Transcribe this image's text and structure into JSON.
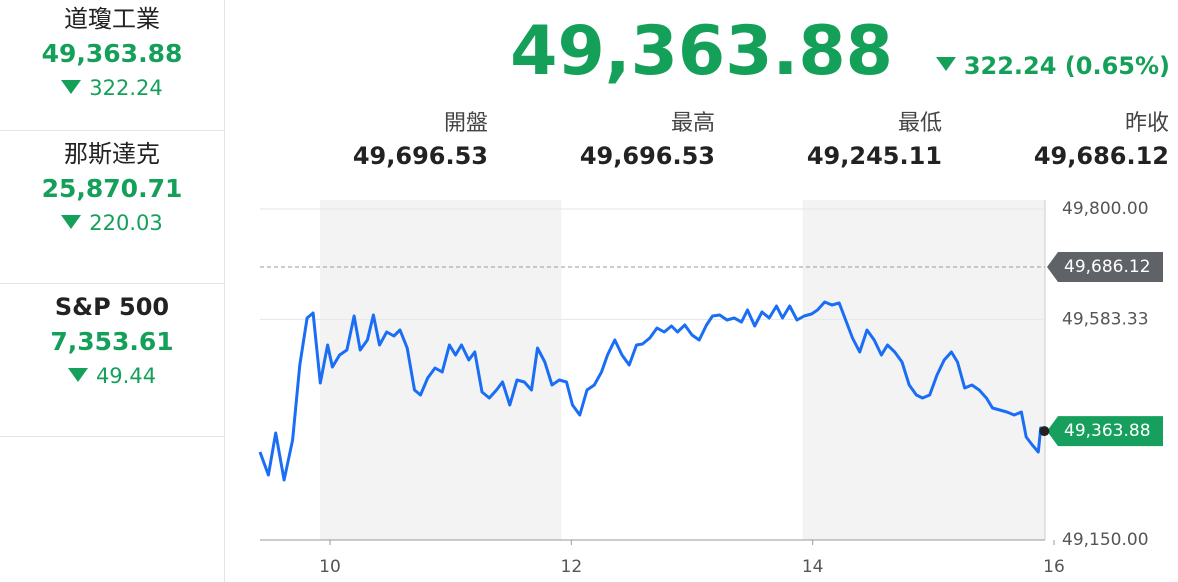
{
  "sidebar": [
    {
      "name": "道瓊工業",
      "value": "49,363.88",
      "change": "322.24"
    },
    {
      "name": "那斯達克",
      "value": "25,870.71",
      "change": "220.03"
    },
    {
      "name": "S&P 500",
      "value": "7,353.61",
      "change": "49.44"
    }
  ],
  "header": {
    "price": "49,363.88",
    "change": "322.24 (0.65%)",
    "stats": [
      {
        "label": "開盤",
        "value": "49,696.53"
      },
      {
        "label": "最高",
        "value": "49,696.53"
      },
      {
        "label": "最低",
        "value": "49,245.11"
      },
      {
        "label": "昨收",
        "value": "49,686.12"
      }
    ]
  },
  "chart_data": {
    "type": "line",
    "color": "#1a6ef5",
    "xlim": [
      9.42,
      16
    ],
    "xticks": [
      10,
      12,
      14,
      16
    ],
    "ylim": [
      49150,
      49800
    ],
    "yticks": [
      {
        "value": 49800,
        "label": "49,800.00"
      },
      {
        "value": 49583.33,
        "label": "49,583.33"
      },
      {
        "value": 49150,
        "label": "49,150.00"
      }
    ],
    "reference_line": {
      "value": 49686.12,
      "label": "49,686.12"
    },
    "last_label": "49,363.88",
    "x": [
      9.42,
      9.49,
      9.55,
      9.62,
      9.69,
      9.75,
      9.81,
      9.86,
      9.92,
      9.98,
      10.02,
      10.08,
      10.14,
      10.2,
      10.25,
      10.31,
      10.36,
      10.41,
      10.47,
      10.53,
      10.58,
      10.64,
      10.7,
      10.75,
      10.81,
      10.87,
      10.93,
      10.99,
      11.04,
      11.09,
      11.15,
      11.2,
      11.26,
      11.32,
      11.38,
      11.43,
      11.49,
      11.55,
      11.61,
      11.67,
      11.72,
      11.78,
      11.84,
      11.9,
      11.96,
      12.01,
      12.07,
      12.13,
      12.19,
      12.25,
      12.3,
      12.36,
      12.42,
      12.48,
      12.54,
      12.59,
      12.65,
      12.71,
      12.77,
      12.83,
      12.88,
      12.94,
      13.0,
      13.06,
      13.12,
      13.17,
      13.23,
      13.29,
      13.35,
      13.41,
      13.46,
      13.52,
      13.58,
      13.64,
      13.7,
      13.75,
      13.81,
      13.87,
      13.93,
      13.99,
      14.04,
      14.1,
      14.16,
      14.22,
      14.28,
      14.33,
      14.39,
      14.45,
      14.51,
      14.57,
      14.62,
      14.68,
      14.74,
      14.8,
      14.86,
      14.91,
      14.97,
      15.03,
      15.09,
      15.15,
      15.2,
      15.26,
      15.32,
      15.38,
      15.44,
      15.49,
      15.55,
      15.61,
      15.67,
      15.73,
      15.77,
      15.82,
      15.87,
      15.89,
      15.92
    ],
    "values": [
      49322.8,
      49277.7,
      49360.1,
      49267.8,
      49346.4,
      49493.7,
      49586.0,
      49595.8,
      49458.3,
      49532.9,
      49489.7,
      49513.3,
      49523.1,
      49589.9,
      49523.1,
      49542.8,
      49591.8,
      49532.9,
      49558.5,
      49550.6,
      49562.4,
      49527.0,
      49444.6,
      49434.8,
      49468.1,
      49487.8,
      49479.9,
      49532.9,
      49513.3,
      49532.9,
      49503.5,
      49519.2,
      49440.6,
      49428.9,
      49444.6,
      49460.3,
      49415.1,
      49464.2,
      49460.3,
      49444.6,
      49527.0,
      49499.6,
      49454.4,
      49464.2,
      49460.3,
      49415.1,
      49395.5,
      49444.6,
      49454.4,
      49479.9,
      49513.3,
      49542.8,
      49513.3,
      49493.7,
      49532.9,
      49534.9,
      49546.7,
      49566.3,
      49558.5,
      49570.2,
      49558.5,
      49572.2,
      49552.6,
      49542.8,
      49572.2,
      49589.9,
      49591.8,
      49582.0,
      49586.0,
      49578.1,
      49601.7,
      49570.2,
      49597.7,
      49586.0,
      49609.5,
      49586.0,
      49609.5,
      49582.0,
      49589.9,
      49593.8,
      49601.7,
      49617.4,
      49611.5,
      49615.4,
      49578.1,
      49546.7,
      49519.2,
      49562.4,
      49542.8,
      49513.3,
      49532.9,
      49519.2,
      49499.6,
      49454.4,
      49434.8,
      49428.9,
      49434.8,
      49474.0,
      49503.5,
      49519.2,
      49499.6,
      49448.5,
      49454.4,
      49444.6,
      49428.9,
      49409.2,
      49405.3,
      49401.4,
      49395.5,
      49401.4,
      49352.3,
      49336.6,
      49322.8,
      49370.0,
      49363.88
    ]
  }
}
